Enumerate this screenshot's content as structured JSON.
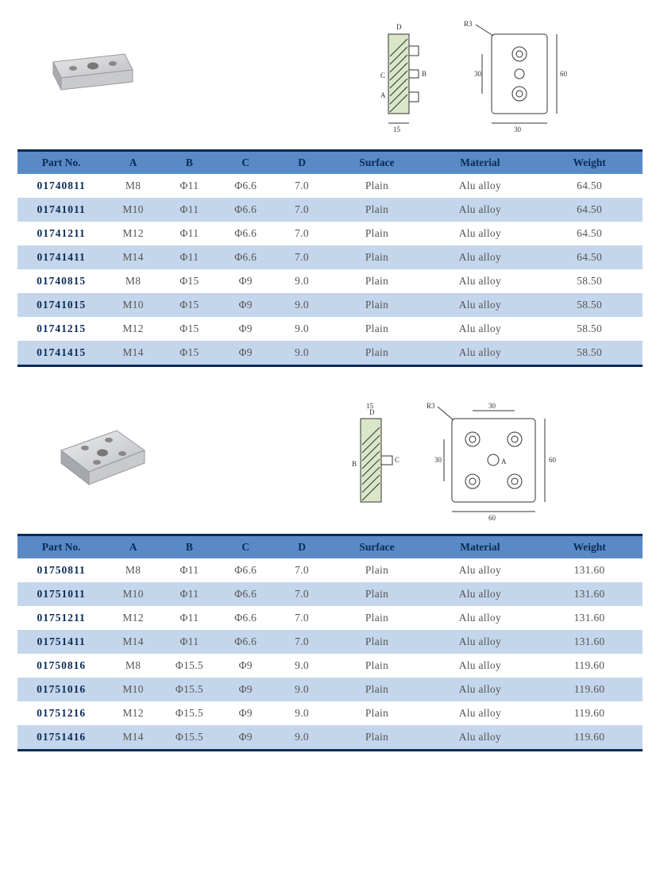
{
  "sections": [
    {
      "diagram": {
        "type": "rect-plate",
        "dims": {
          "side_w": "15",
          "front_w": "30",
          "front_h": "60",
          "hole_sp": "30",
          "radius": "R3"
        },
        "labels": [
          "A",
          "B",
          "C",
          "D"
        ]
      },
      "columns": [
        "Part No.",
        "A",
        "B",
        "C",
        "D",
        "Surface",
        "Material",
        "Weight"
      ],
      "rows": [
        [
          "01740811",
          "M8",
          "Φ11",
          "Φ6.6",
          "7.0",
          "Plain",
          "Alu alloy",
          "64.50"
        ],
        [
          "01741011",
          "M10",
          "Φ11",
          "Φ6.6",
          "7.0",
          "Plain",
          "Alu alloy",
          "64.50"
        ],
        [
          "01741211",
          "M12",
          "Φ11",
          "Φ6.6",
          "7.0",
          "Plain",
          "Alu alloy",
          "64.50"
        ],
        [
          "01741411",
          "M14",
          "Φ11",
          "Φ6.6",
          "7.0",
          "Plain",
          "Alu alloy",
          "64.50"
        ],
        [
          "01740815",
          "M8",
          "Φ15",
          "Φ9",
          "9.0",
          "Plain",
          "Alu alloy",
          "58.50"
        ],
        [
          "01741015",
          "M10",
          "Φ15",
          "Φ9",
          "9.0",
          "Plain",
          "Alu alloy",
          "58.50"
        ],
        [
          "01741215",
          "M12",
          "Φ15",
          "Φ9",
          "9.0",
          "Plain",
          "Alu alloy",
          "58.50"
        ],
        [
          "01741415",
          "M14",
          "Φ15",
          "Φ9",
          "9.0",
          "Plain",
          "Alu alloy",
          "58.50"
        ]
      ]
    },
    {
      "diagram": {
        "type": "square-plate",
        "dims": {
          "side_w": "15",
          "front_w": "60",
          "front_h": "60",
          "hole_sp_x": "30",
          "hole_sp_y": "30",
          "radius": "R3"
        },
        "labels": [
          "A",
          "B",
          "C",
          "D"
        ]
      },
      "columns": [
        "Part No.",
        "A",
        "B",
        "C",
        "D",
        "Surface",
        "Material",
        "Weight"
      ],
      "rows": [
        [
          "01750811",
          "M8",
          "Φ11",
          "Φ6.6",
          "7.0",
          "Plain",
          "Alu alloy",
          "131.60"
        ],
        [
          "01751011",
          "M10",
          "Φ11",
          "Φ6.6",
          "7.0",
          "Plain",
          "Alu alloy",
          "131.60"
        ],
        [
          "01751211",
          "M12",
          "Φ11",
          "Φ6.6",
          "7.0",
          "Plain",
          "Alu alloy",
          "131.60"
        ],
        [
          "01751411",
          "M14",
          "Φ11",
          "Φ6.6",
          "7.0",
          "Plain",
          "Alu alloy",
          "131.60"
        ],
        [
          "01750816",
          "M8",
          "Φ15.5",
          "Φ9",
          "9.0",
          "Plain",
          "Alu alloy",
          "119.60"
        ],
        [
          "01751016",
          "M10",
          "Φ15.5",
          "Φ9",
          "9.0",
          "Plain",
          "Alu alloy",
          "119.60"
        ],
        [
          "01751216",
          "M12",
          "Φ15.5",
          "Φ9",
          "9.0",
          "Plain",
          "Alu alloy",
          "119.60"
        ],
        [
          "01751416",
          "M14",
          "Φ15.5",
          "Φ9",
          "9.0",
          "Plain",
          "Alu alloy",
          "119.60"
        ]
      ]
    }
  ],
  "style": {
    "header_bg": "#5a8ac6",
    "row_alt_bg": "#c4d6eb",
    "border_color": "#0a2a55",
    "text_color": "#555",
    "header_text": "#0a2a55"
  }
}
